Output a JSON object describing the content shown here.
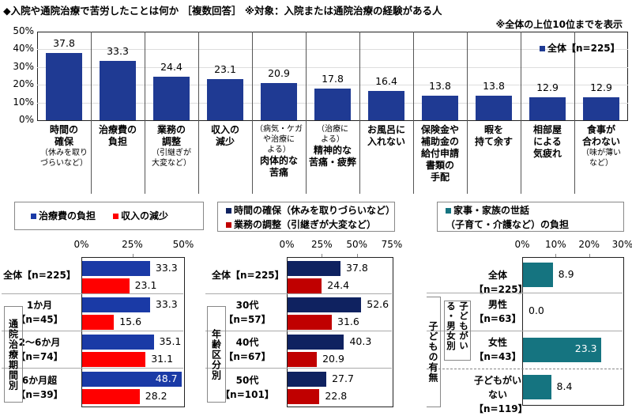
{
  "title": "◆入院や通院治療で苦労したことは何か ［複数回答］ ※対象：入院または通院治療の経験がある人",
  "note": "※全体の上位10位までを表示",
  "colors": {
    "top": "#1f3a93",
    "blue": "#1a3aa6",
    "red": "#ff0000",
    "navy": "#0f2260",
    "darkred": "#c00000",
    "teal": "#157480"
  },
  "chart_data": [
    {
      "type": "bar",
      "legend": "全体【n=225】",
      "ylim": [
        0,
        50
      ],
      "yticks": [
        "0%",
        "10%",
        "20%",
        "30%",
        "40%",
        "50%"
      ],
      "categories": [
        {
          "main": "時間の\n確保",
          "sub": "（休みを取り\nづらいなど）"
        },
        {
          "main": "治療費の\n負担"
        },
        {
          "main": "業務の\n調整",
          "sub": "（引継ぎが\n大変など）"
        },
        {
          "main": "収入の\n減少"
        },
        {
          "pre": "（病気・ケガ\nや治療に\nよる）",
          "main": "肉体的な\n苦痛"
        },
        {
          "pre": "（治療に\nよる）",
          "main": "精神的な\n苦痛・疲弊"
        },
        {
          "main": "お風呂に\n入れない"
        },
        {
          "main": "保険金や\n補助金の\n給付申請\n書類の\n手配"
        },
        {
          "main": "暇を\n持て余す"
        },
        {
          "main": "相部屋\nによる\n気疲れ"
        },
        {
          "main": "食事が\n合わない",
          "sub": "（味が薄い\nなど）"
        }
      ],
      "values": [
        37.8,
        33.3,
        24.4,
        23.1,
        20.9,
        17.8,
        16.4,
        13.8,
        13.8,
        12.9,
        12.9
      ]
    },
    {
      "type": "bar",
      "orientation": "horizontal",
      "xlim": [
        0,
        50
      ],
      "xticks": [
        "0%",
        "25%",
        "50%"
      ],
      "series": [
        {
          "name": "治療費の負担",
          "values": [
            33.3,
            33.3,
            35.1,
            48.7
          ]
        },
        {
          "name": "収入の減少",
          "values": [
            23.1,
            15.6,
            31.1,
            28.2
          ]
        }
      ],
      "categories": [
        "全体【n=225】",
        "1か月\n【n=45】",
        "2～6か月\n【n=74】",
        "6か月超\n【n=39】"
      ],
      "group_label": "通院治療期間別"
    },
    {
      "type": "bar",
      "orientation": "horizontal",
      "xlim": [
        0,
        75
      ],
      "xticks": [
        "0%",
        "25%",
        "50%",
        "75%"
      ],
      "series": [
        {
          "name": "時間の確保（休みを取りづらいなど）",
          "values": [
            37.8,
            52.6,
            40.3,
            27.7
          ]
        },
        {
          "name": "業務の調整（引継ぎが大変など）",
          "values": [
            24.4,
            31.6,
            20.9,
            22.8
          ]
        }
      ],
      "categories": [
        "全体【n=225】",
        "30代\n【n=57】",
        "40代\n【n=67】",
        "50代\n【n=101】"
      ],
      "group_label": "年齢区分別"
    },
    {
      "type": "bar",
      "orientation": "horizontal",
      "xlim": [
        0,
        30
      ],
      "xticks": [
        "0%",
        "10%",
        "20%",
        "30%"
      ],
      "series": [
        {
          "name": "家事・家族の世話\n（子育て・介護など）の負担",
          "values": [
            8.9,
            0.0,
            23.3,
            8.4
          ]
        }
      ],
      "categories": [
        "全体【n=225】",
        "男性\n【n=63】",
        "女性\n【n=43】",
        "子どもがいない\n【n=119】"
      ],
      "group_label": "子どもの有無",
      "subgroup_label": "子どもがいる・男女別"
    }
  ]
}
